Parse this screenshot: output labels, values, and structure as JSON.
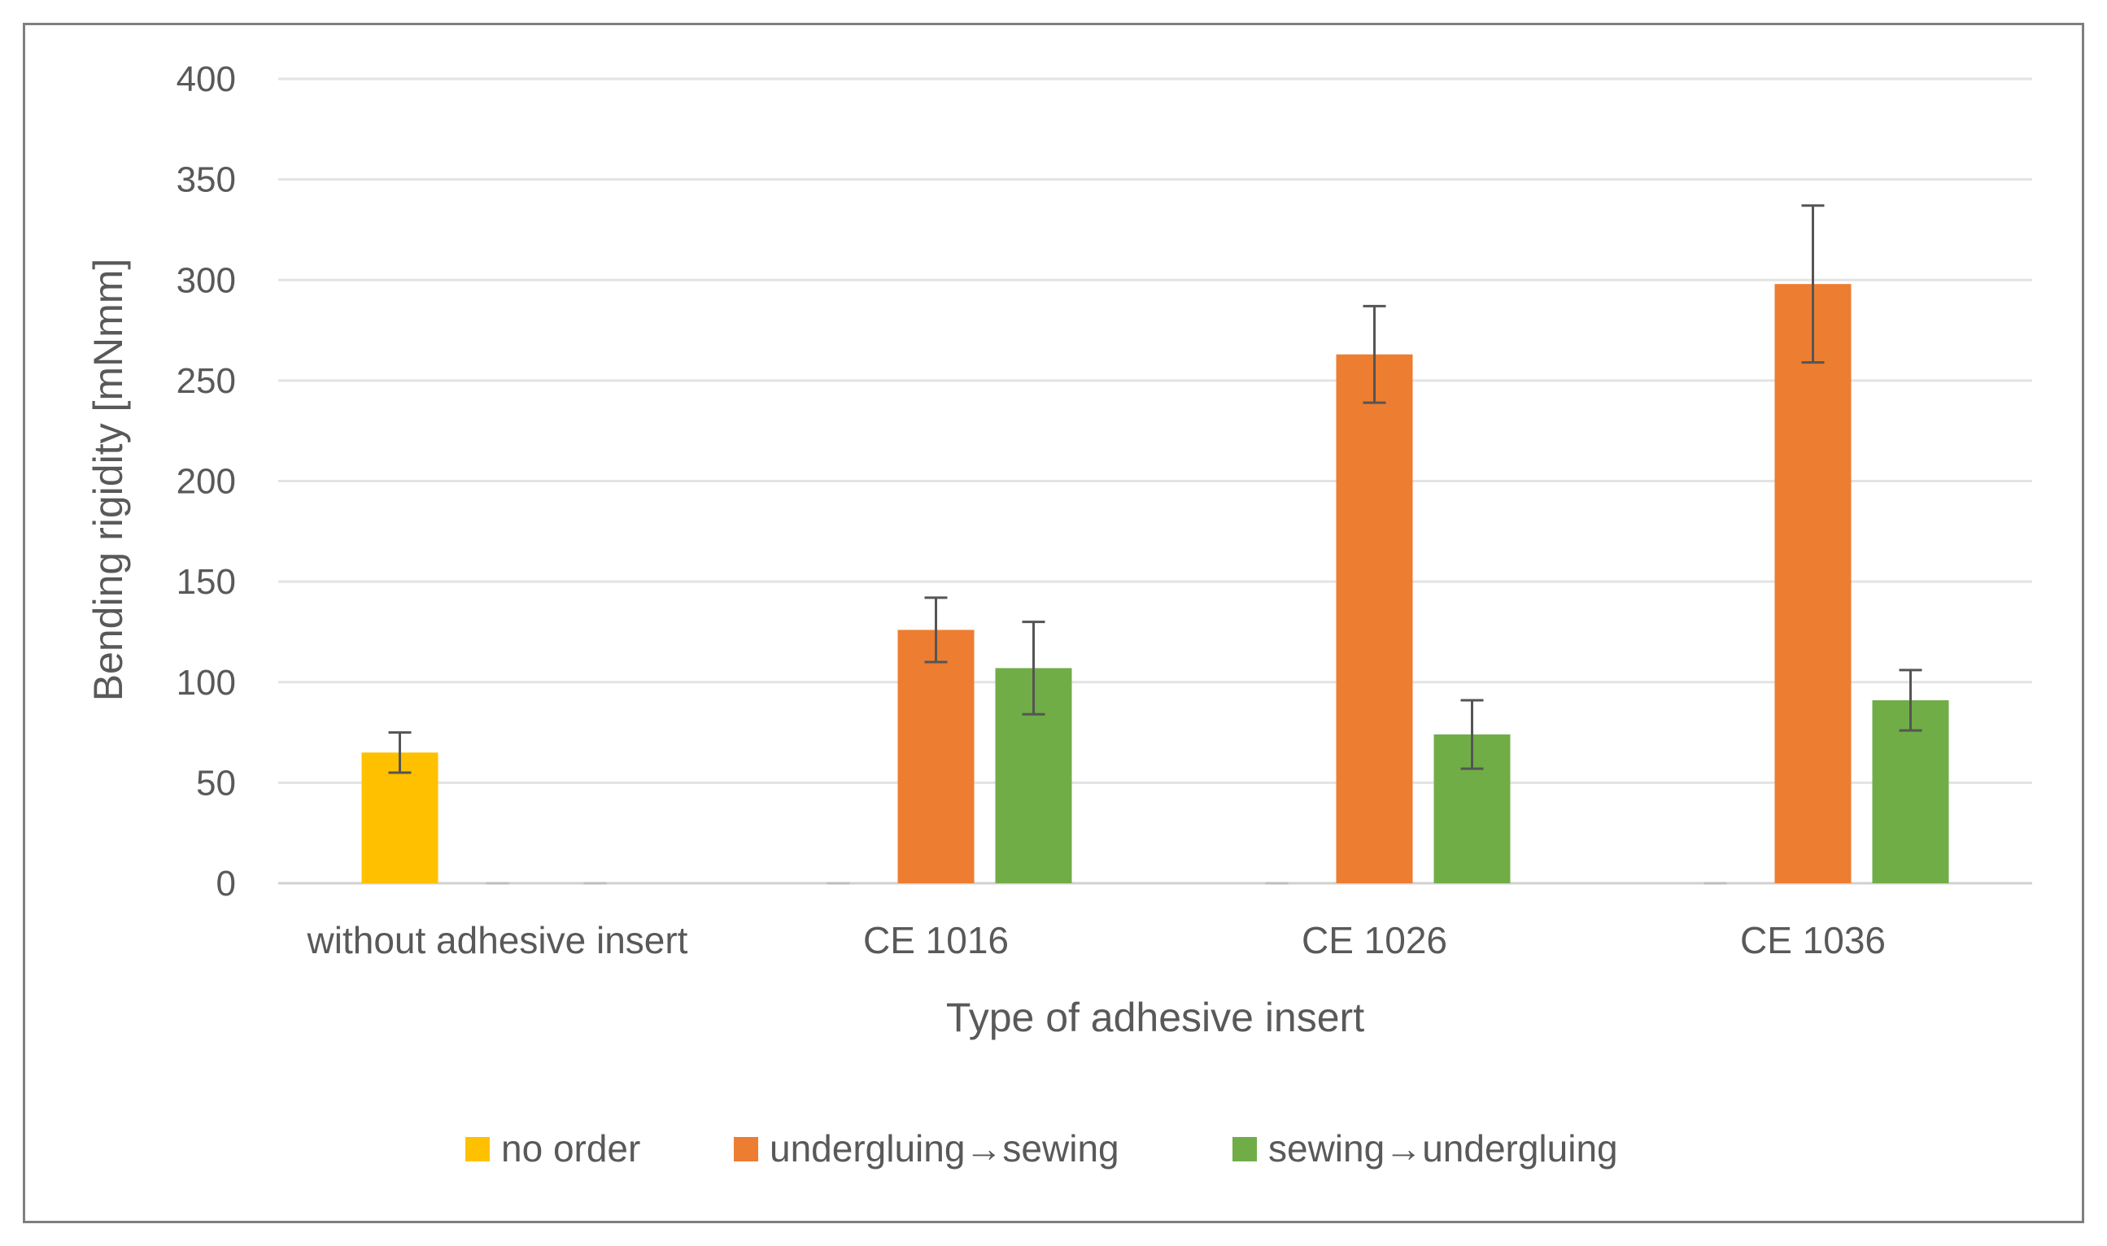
{
  "chart_data": {
    "type": "bar",
    "title": "",
    "xlabel": "Type of adhesive insert",
    "ylabel": "Bending rigidity [mNmm]",
    "ylim": [
      0,
      400
    ],
    "yticks": [
      0,
      50,
      100,
      150,
      200,
      250,
      300,
      350,
      400
    ],
    "grid": true,
    "legend_position": "bottom",
    "categories": [
      "without adhesive insert",
      "CE 1016",
      "CE 1026",
      "CE 1036"
    ],
    "series": [
      {
        "name": "no order",
        "color": "#FFC000",
        "values": [
          65,
          0,
          0,
          0
        ],
        "errors": [
          10,
          0,
          0,
          0
        ]
      },
      {
        "name": "undergluing→sewing",
        "color": "#ED7D31",
        "values": [
          0,
          126,
          263,
          298
        ],
        "errors": [
          0,
          16,
          24,
          39
        ]
      },
      {
        "name": "sewing→undergluing",
        "color": "#70AD47",
        "values": [
          0,
          107,
          74,
          91
        ],
        "errors": [
          0,
          23,
          17,
          15
        ]
      }
    ]
  }
}
